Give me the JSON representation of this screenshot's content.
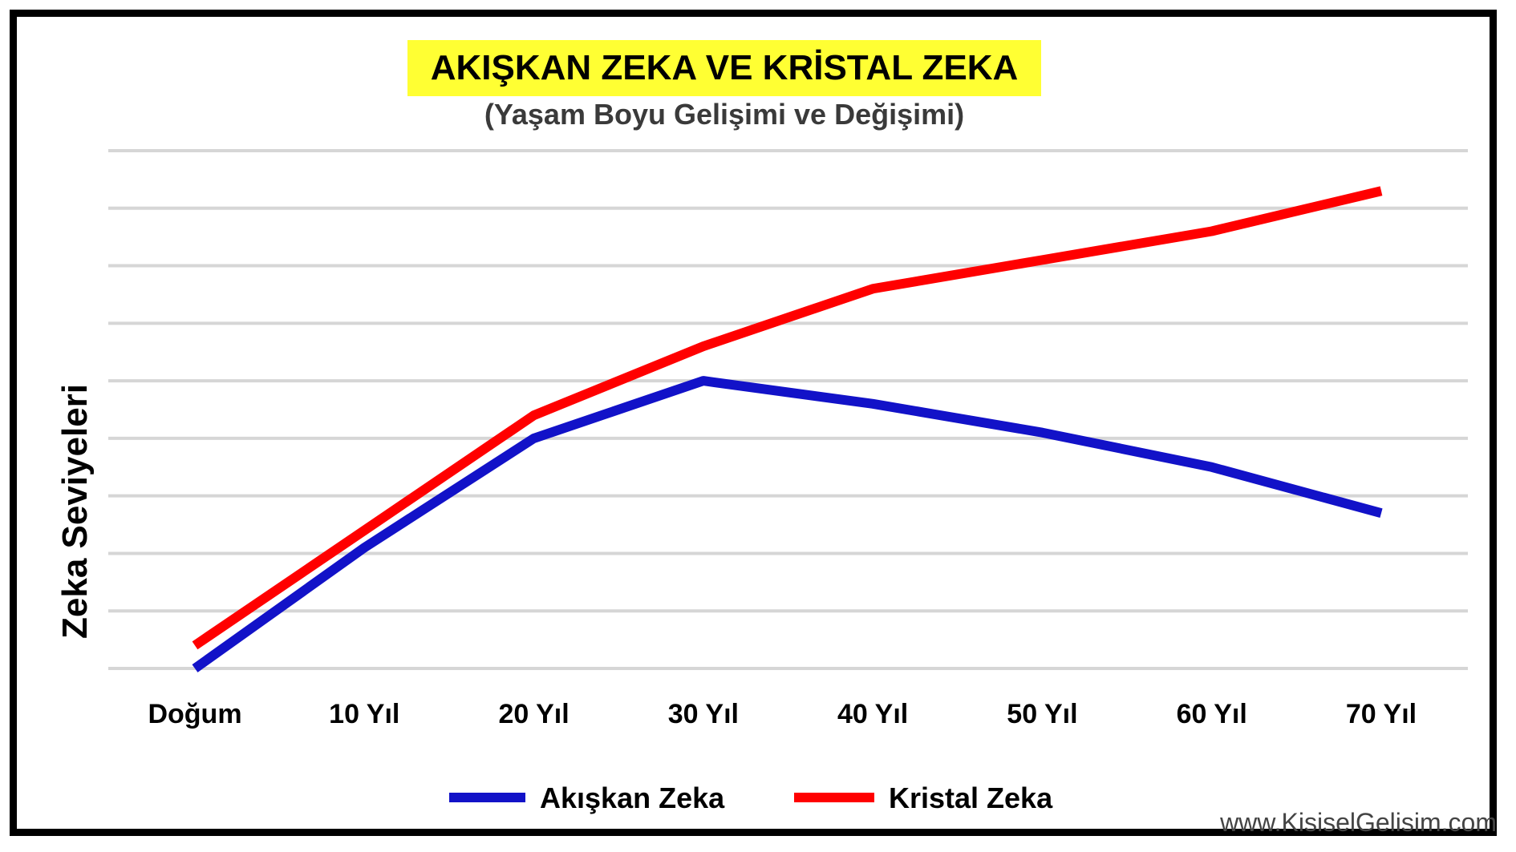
{
  "chart_data": {
    "type": "line",
    "title": "AKIŞKAN ZEKA VE KRİSTAL ZEKA",
    "subtitle": "(Yaşam Boyu Gelişimi ve Değişimi)",
    "xlabel": "",
    "ylabel": "Zeka Seviyeleri",
    "categories": [
      "Doğum",
      "10 Yıl",
      "20 Yıl",
      "30 Yıl",
      "40 Yıl",
      "50 Yıl",
      "60 Yıl",
      "70 Yıl"
    ],
    "ylim": [
      0,
      9
    ],
    "grid": true,
    "legend": "bottom",
    "series": [
      {
        "name": "Akışkan Zeka",
        "color": "#1212c8",
        "values": [
          0,
          2.1,
          4.0,
          5.0,
          4.6,
          4.1,
          3.5,
          2.7
        ]
      },
      {
        "name": "Kristal Zeka",
        "color": "#ff0000",
        "values": [
          0.4,
          2.4,
          4.4,
          5.6,
          6.6,
          7.1,
          7.6,
          8.3
        ]
      }
    ]
  },
  "colors": {
    "title_highlight": "#ffff33",
    "subtitle_text": "#3a3a3a",
    "grid": "#d6d6d6",
    "frame": "#000000"
  },
  "watermark": "www.KisiselGelisim.com"
}
